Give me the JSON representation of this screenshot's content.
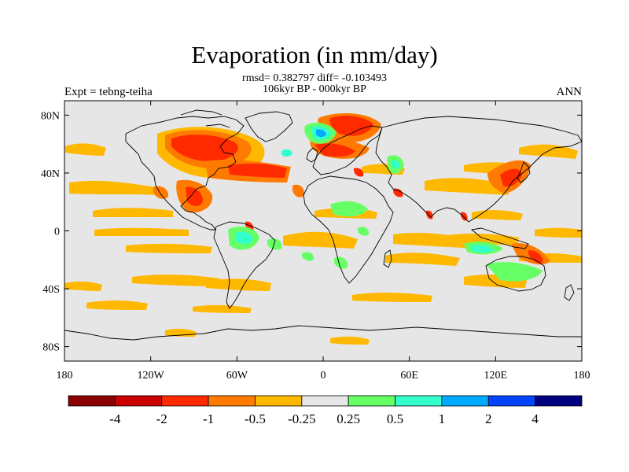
{
  "title": "Evaporation (in mm/day)",
  "stats_line1": "rmsd= 0.382797 diff= -0.103493",
  "stats_line2": "106kyr BP - 000kyr BP",
  "left_label": "Expt = tebng-teiha",
  "right_label": "ANN",
  "x_ticks": [
    {
      "lon": -180,
      "label": "180"
    },
    {
      "lon": -120,
      "label": "120W"
    },
    {
      "lon": -60,
      "label": "60W"
    },
    {
      "lon": 0,
      "label": "0"
    },
    {
      "lon": 60,
      "label": "60E"
    },
    {
      "lon": 120,
      "label": "120E"
    },
    {
      "lon": 180,
      "label": "180"
    }
  ],
  "y_ticks": [
    {
      "lat": 80,
      "label": "80N"
    },
    {
      "lat": 40,
      "label": "40N"
    },
    {
      "lat": 0,
      "label": "0"
    },
    {
      "lat": -40,
      "label": "40S"
    },
    {
      "lat": -80,
      "label": "80S"
    }
  ],
  "colorbar": {
    "colors": [
      "#8b0000",
      "#cc0000",
      "#ff2a00",
      "#ff7a00",
      "#ffb800",
      "#e6e6e6",
      "#66ff66",
      "#33ffcc",
      "#00aaff",
      "#0044ff",
      "#000080"
    ],
    "labels": [
      "-4",
      "-2",
      "-1",
      "-0.5",
      "-0.25",
      "0.25",
      "0.5",
      "1",
      "2",
      "4"
    ]
  },
  "colors": {
    "ocean": "#e6e6e6",
    "coast": "#000000"
  }
}
